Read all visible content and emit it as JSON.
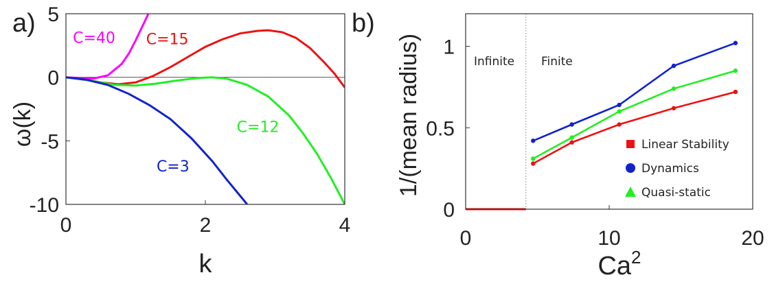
{
  "chart_data": [
    {
      "type": "line",
      "panel_label": "a)",
      "xlabel": "k",
      "ylabel": "ω(k)",
      "xlim": [
        0,
        4
      ],
      "ylim": [
        -10,
        5
      ],
      "xticks": [
        "0",
        "2",
        "4"
      ],
      "yticks": [
        "5",
        "0",
        "-5",
        "-10"
      ],
      "zero_line": true,
      "series": [
        {
          "name": "C=40",
          "color": "#ff00ff",
          "x": [
            0,
            0.2,
            0.4,
            0.6,
            0.8,
            0.9,
            1.0,
            1.1,
            1.2
          ],
          "y": [
            0,
            -0.05,
            -0.1,
            0.15,
            1.05,
            1.85,
            2.9,
            4.05,
            5.2
          ]
        },
        {
          "name": "C=15",
          "color": "#ee1111",
          "x": [
            0,
            0.3,
            0.5,
            0.75,
            1.0,
            1.25,
            1.5,
            1.75,
            2.0,
            2.25,
            2.5,
            2.75,
            2.9,
            3.1,
            3.3,
            3.5,
            3.7,
            3.85,
            4.0
          ],
          "y": [
            0,
            -0.2,
            -0.4,
            -0.55,
            -0.4,
            0.1,
            0.8,
            1.6,
            2.4,
            3.0,
            3.45,
            3.65,
            3.7,
            3.55,
            3.1,
            2.3,
            1.2,
            0.3,
            -0.8
          ]
        },
        {
          "name": "C=12",
          "color": "#22ee22",
          "x": [
            0,
            0.4,
            0.7,
            1.0,
            1.3,
            1.6,
            1.9,
            2.1,
            2.3,
            2.6,
            2.9,
            3.2,
            3.4,
            3.6,
            3.8,
            4.0
          ],
          "y": [
            0,
            -0.3,
            -0.6,
            -0.65,
            -0.5,
            -0.25,
            -0.05,
            0.0,
            -0.1,
            -0.6,
            -1.5,
            -3.0,
            -4.4,
            -6.0,
            -7.9,
            -10.0
          ]
        },
        {
          "name": "C=3",
          "color": "#1122cc",
          "x": [
            0,
            0.3,
            0.6,
            0.9,
            1.2,
            1.5,
            1.8,
            2.1,
            2.3,
            2.45,
            2.6
          ],
          "y": [
            0,
            -0.2,
            -0.6,
            -1.3,
            -2.2,
            -3.3,
            -4.8,
            -6.6,
            -8.0,
            -9.0,
            -10.0
          ]
        }
      ]
    },
    {
      "type": "line",
      "panel_label": "b)",
      "xlabel": "Ca",
      "xlabel_superscript": "2",
      "ylabel": "1/(mean radius)",
      "xlim": [
        0,
        20
      ],
      "ylim": [
        0,
        1.2
      ],
      "xticks": [
        "0",
        "10",
        "20"
      ],
      "yticks": [
        "0",
        "0.5",
        "1"
      ],
      "regions": [
        "Infinite",
        "Finite"
      ],
      "region_boundary_x": 4.2,
      "infinite_segment": {
        "color": "#ee1111",
        "x": [
          0,
          4.2
        ],
        "y": [
          0,
          0
        ]
      },
      "legend_position": "bottom-right",
      "series": [
        {
          "name": "Linear Stability",
          "marker": "square",
          "color": "#ee1111",
          "x": [
            4.7,
            7.4,
            10.7,
            14.5,
            18.8
          ],
          "y": [
            0.28,
            0.41,
            0.52,
            0.62,
            0.72
          ]
        },
        {
          "name": "Dynamics",
          "marker": "circle",
          "color": "#1122cc",
          "x": [
            4.7,
            7.4,
            10.7,
            14.5,
            18.8
          ],
          "y": [
            0.42,
            0.52,
            0.64,
            0.88,
            1.02
          ]
        },
        {
          "name": "Quasi-static",
          "marker": "triangle",
          "color": "#22ee22",
          "x": [
            4.7,
            7.4,
            10.7,
            14.5,
            18.8
          ],
          "y": [
            0.31,
            0.44,
            0.6,
            0.74,
            0.85
          ]
        }
      ]
    }
  ]
}
